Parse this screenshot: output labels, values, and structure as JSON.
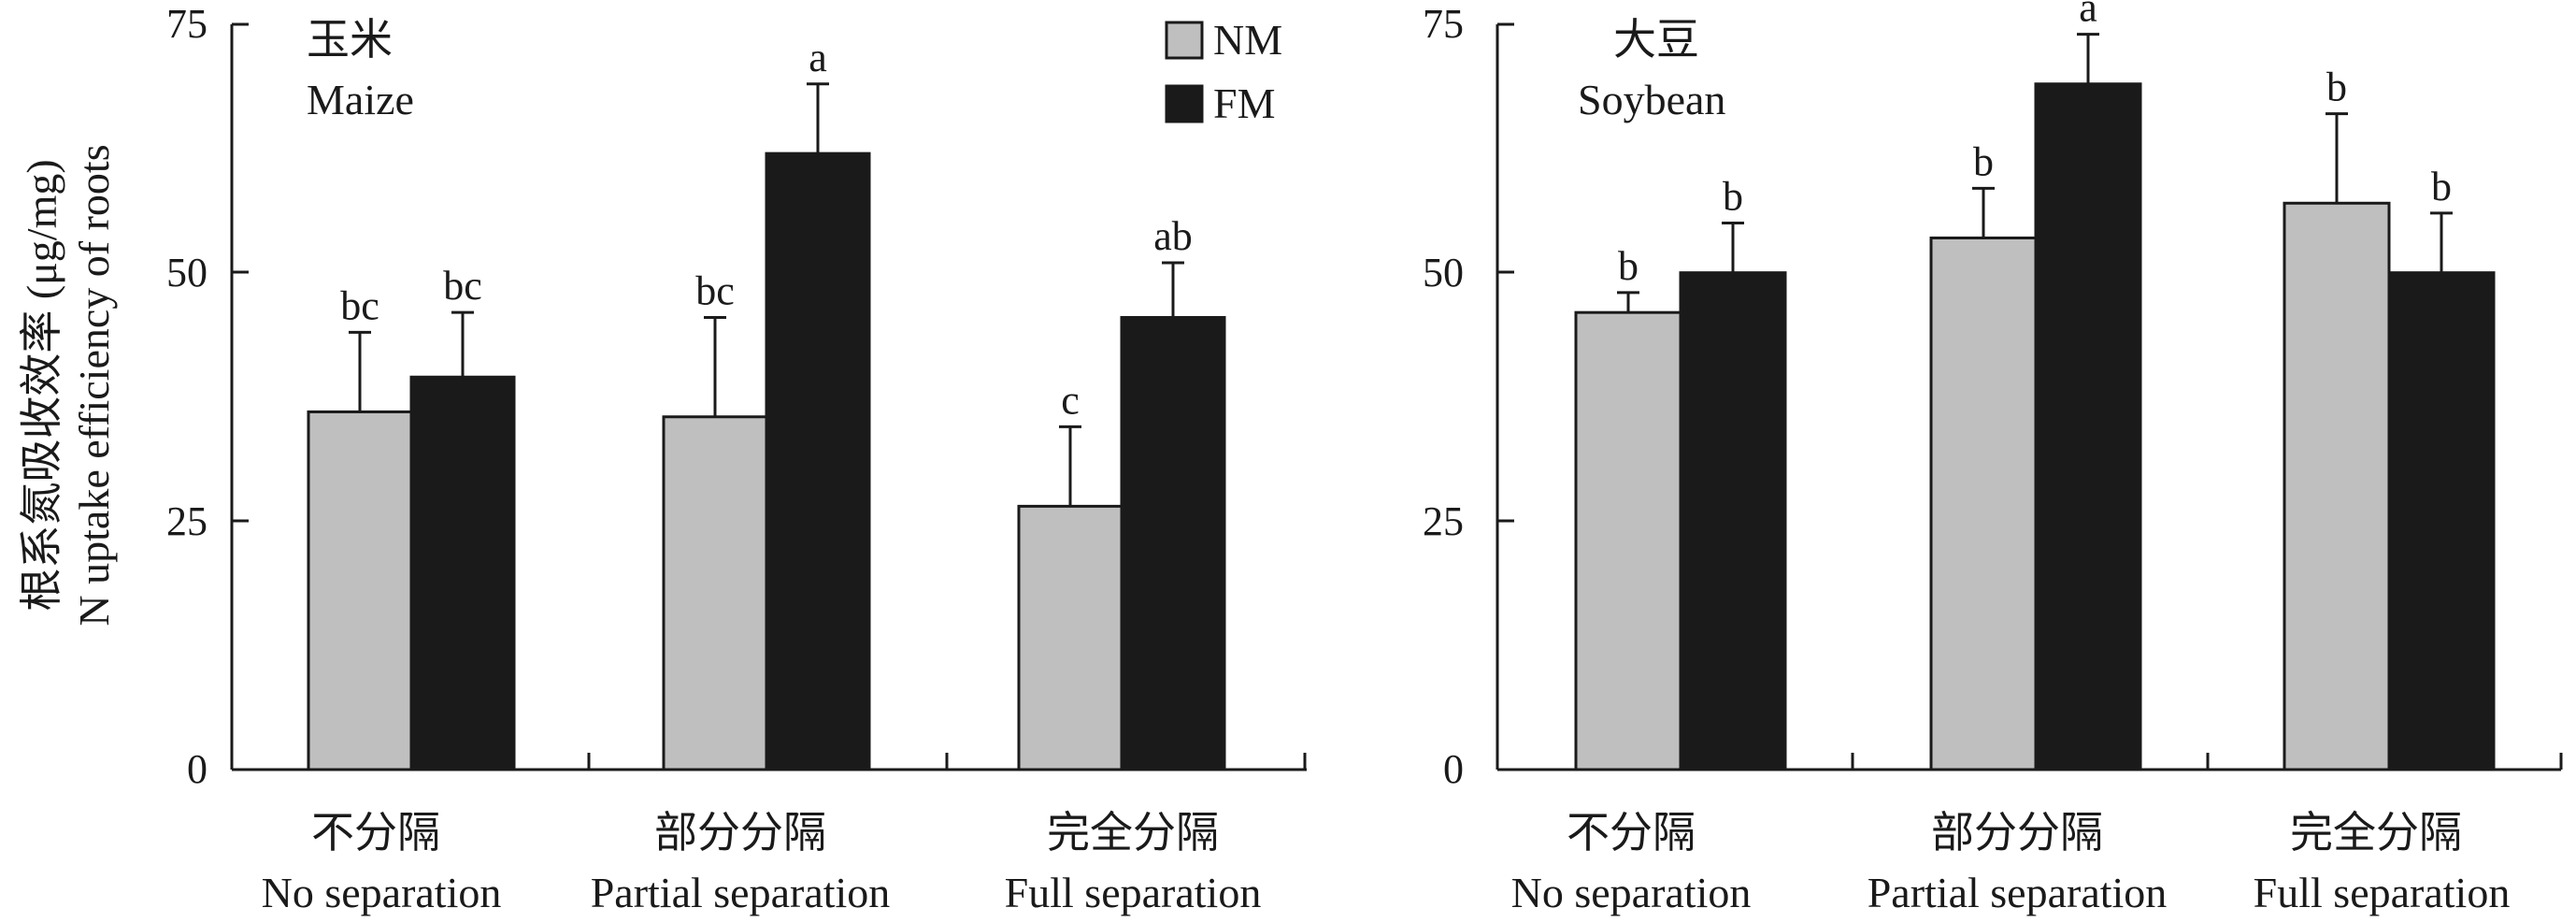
{
  "chart_data": [
    {
      "type": "bar",
      "title_cn": "玉米",
      "title_en": "Maize",
      "ylabel_cn": "根系氮吸收效率 (μg/mg)",
      "ylabel_en": "N uptake efficiency of roots",
      "ylim": [
        0,
        75
      ],
      "yticks": [
        "0",
        "25",
        "50",
        "75"
      ],
      "legend_position": "top-right",
      "legend": [
        "NM",
        "FM"
      ],
      "categories": [
        {
          "cn": "不分隔",
          "en": "No separation"
        },
        {
          "cn": "部分分隔",
          "en": "Partial separation"
        },
        {
          "cn": "完全分隔",
          "en": "Full separation"
        }
      ],
      "series": [
        {
          "name": "NM",
          "color": "#bfbfbf",
          "values": [
            36,
            35.5,
            26.5
          ],
          "errors": [
            8,
            10,
            8
          ],
          "labels": [
            "bc",
            "bc",
            "c"
          ]
        },
        {
          "name": "FM",
          "color": "#1a1a1a",
          "values": [
            39.5,
            62,
            45.5
          ],
          "errors": [
            6.5,
            7,
            5.5
          ],
          "labels": [
            "bc",
            "a",
            "ab"
          ]
        }
      ]
    },
    {
      "type": "bar",
      "title_cn": "大豆",
      "title_en": "Soybean",
      "ylim": [
        0,
        75
      ],
      "yticks": [
        "0",
        "25",
        "50",
        "75"
      ],
      "categories": [
        {
          "cn": "不分隔",
          "en": "No separation"
        },
        {
          "cn": "部分分隔",
          "en": "Partial separation"
        },
        {
          "cn": "完全分隔",
          "en": "Full separation"
        }
      ],
      "series": [
        {
          "name": "NM",
          "color": "#bfbfbf",
          "values": [
            46,
            53.5,
            57
          ],
          "errors": [
            2,
            5,
            9
          ],
          "labels": [
            "b",
            "b",
            "b"
          ]
        },
        {
          "name": "FM",
          "color": "#1a1a1a",
          "values": [
            50,
            69,
            50
          ],
          "errors": [
            5,
            5,
            6
          ],
          "labels": [
            "b",
            "a",
            "b"
          ]
        }
      ]
    }
  ]
}
